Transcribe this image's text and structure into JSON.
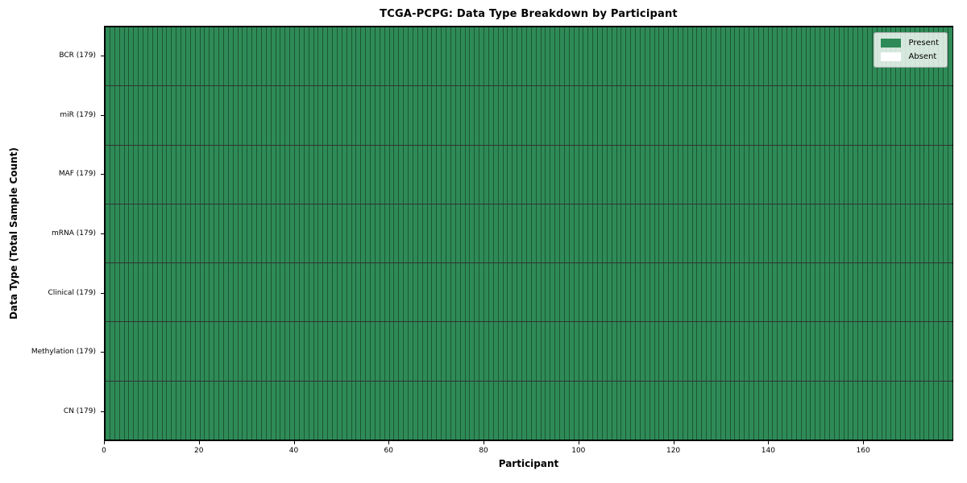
{
  "chart_data": {
    "type": "heatmap",
    "title": "TCGA-PCPG: Data Type Breakdown by Participant",
    "xlabel": "Participant",
    "ylabel": "Data Type (Total Sample Count)",
    "n_participants": 179,
    "x_range": [
      0,
      179
    ],
    "x_ticks": [
      0,
      20,
      40,
      60,
      80,
      100,
      120,
      140,
      160
    ],
    "value_domain": [
      "Absent",
      "Present"
    ],
    "rows": [
      {
        "label": "BCR (179)",
        "data_type": "BCR",
        "total_samples": 179,
        "present_count": 179,
        "absent_count": 0
      },
      {
        "label": "miR (179)",
        "data_type": "miR",
        "total_samples": 179,
        "present_count": 179,
        "absent_count": 0
      },
      {
        "label": "MAF (179)",
        "data_type": "MAF",
        "total_samples": 179,
        "present_count": 179,
        "absent_count": 0
      },
      {
        "label": "mRNA (179)",
        "data_type": "mRNA",
        "total_samples": 179,
        "present_count": 179,
        "absent_count": 0
      },
      {
        "label": "Clinical (179)",
        "data_type": "Clinical",
        "total_samples": 179,
        "present_count": 179,
        "absent_count": 0
      },
      {
        "label": "Methylation (179)",
        "data_type": "Methylation",
        "total_samples": 179,
        "present_count": 179,
        "absent_count": 0
      },
      {
        "label": "CN (179)",
        "data_type": "CN",
        "total_samples": 179,
        "present_count": 179,
        "absent_count": 0
      }
    ],
    "legend": {
      "position": "upper right",
      "items": [
        {
          "label": "Present",
          "color": "#2e8b57"
        },
        {
          "label": "Absent",
          "color": "#ffffff"
        }
      ]
    },
    "colors": {
      "present": "#2e8b57",
      "absent": "#ffffff",
      "cell_edge": "rgba(0,0,0,0.38)",
      "row_divider": "rgba(0,0,0,0.8)",
      "frame": "#000000"
    }
  }
}
